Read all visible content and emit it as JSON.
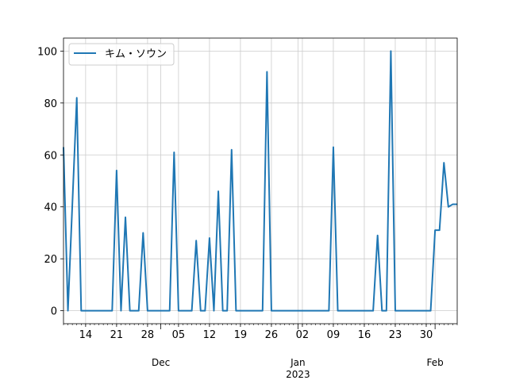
{
  "chart_data": {
    "type": "line",
    "x_start": "2022-11-09",
    "x_end": "2023-02-06",
    "x": [
      "2022-11-09",
      "2022-11-10",
      "2022-11-11",
      "2022-11-12",
      "2022-11-13",
      "2022-11-14",
      "2022-11-15",
      "2022-11-16",
      "2022-11-17",
      "2022-11-18",
      "2022-11-19",
      "2022-11-20",
      "2022-11-21",
      "2022-11-22",
      "2022-11-23",
      "2022-11-24",
      "2022-11-25",
      "2022-11-26",
      "2022-11-27",
      "2022-11-28",
      "2022-11-29",
      "2022-11-30",
      "2022-12-01",
      "2022-12-02",
      "2022-12-03",
      "2022-12-04",
      "2022-12-05",
      "2022-12-06",
      "2022-12-07",
      "2022-12-08",
      "2022-12-09",
      "2022-12-10",
      "2022-12-11",
      "2022-12-12",
      "2022-12-13",
      "2022-12-14",
      "2022-12-15",
      "2022-12-16",
      "2022-12-17",
      "2022-12-18",
      "2022-12-19",
      "2022-12-20",
      "2022-12-21",
      "2022-12-22",
      "2022-12-23",
      "2022-12-24",
      "2022-12-25",
      "2022-12-26",
      "2022-12-27",
      "2022-12-28",
      "2022-12-29",
      "2022-12-30",
      "2022-12-31",
      "2023-01-01",
      "2023-01-02",
      "2023-01-03",
      "2023-01-04",
      "2023-01-05",
      "2023-01-06",
      "2023-01-07",
      "2023-01-08",
      "2023-01-09",
      "2023-01-10",
      "2023-01-11",
      "2023-01-12",
      "2023-01-13",
      "2023-01-14",
      "2023-01-15",
      "2023-01-16",
      "2023-01-17",
      "2023-01-18",
      "2023-01-19",
      "2023-01-20",
      "2023-01-21",
      "2023-01-22",
      "2023-01-23",
      "2023-01-24",
      "2023-01-25",
      "2023-01-26",
      "2023-01-27",
      "2023-01-28",
      "2023-01-29",
      "2023-01-30",
      "2023-01-31",
      "2023-02-01",
      "2023-02-02",
      "2023-02-03",
      "2023-02-04",
      "2023-02-05",
      "2023-02-06"
    ],
    "series": [
      {
        "name": "キム・ソウン",
        "color": "#1f77b4",
        "values": [
          63,
          0,
          41,
          82,
          0,
          0,
          0,
          0,
          0,
          0,
          0,
          0,
          54,
          0,
          36,
          0,
          0,
          0,
          30,
          0,
          0,
          0,
          0,
          0,
          0,
          61,
          0,
          0,
          0,
          0,
          27,
          0,
          0,
          28,
          0,
          46,
          0,
          0,
          62,
          0,
          0,
          0,
          0,
          0,
          0,
          0,
          92,
          0,
          0,
          0,
          0,
          0,
          0,
          0,
          0,
          0,
          0,
          0,
          0,
          0,
          0,
          63,
          0,
          0,
          0,
          0,
          0,
          0,
          0,
          0,
          0,
          29,
          0,
          0,
          100,
          0,
          0,
          0,
          0,
          0,
          0,
          0,
          0,
          0,
          31,
          31,
          57,
          40,
          41,
          41
        ]
      }
    ],
    "x_major_labels": [
      {
        "date": "2022-12-01",
        "label": "Dec"
      },
      {
        "date": "2023-01-01",
        "label": "Jan\n2023"
      },
      {
        "date": "2023-02-01",
        "label": "Feb"
      }
    ],
    "x_minor_labels": [
      {
        "date": "2022-11-14",
        "label": "14"
      },
      {
        "date": "2022-11-21",
        "label": "21"
      },
      {
        "date": "2022-11-28",
        "label": "28"
      },
      {
        "date": "2022-12-05",
        "label": "05"
      },
      {
        "date": "2022-12-12",
        "label": "12"
      },
      {
        "date": "2022-12-19",
        "label": "19"
      },
      {
        "date": "2022-12-26",
        "label": "26"
      },
      {
        "date": "2023-01-02",
        "label": "02"
      },
      {
        "date": "2023-01-09",
        "label": "09"
      },
      {
        "date": "2023-01-16",
        "label": "16"
      },
      {
        "date": "2023-01-23",
        "label": "23"
      },
      {
        "date": "2023-01-30",
        "label": "30"
      }
    ],
    "y_ticks": [
      0,
      20,
      40,
      60,
      80,
      100
    ],
    "ylim": [
      -5,
      105
    ],
    "grid": true,
    "legend_position": "top-left",
    "title": "",
    "xlabel": "",
    "ylabel": ""
  }
}
